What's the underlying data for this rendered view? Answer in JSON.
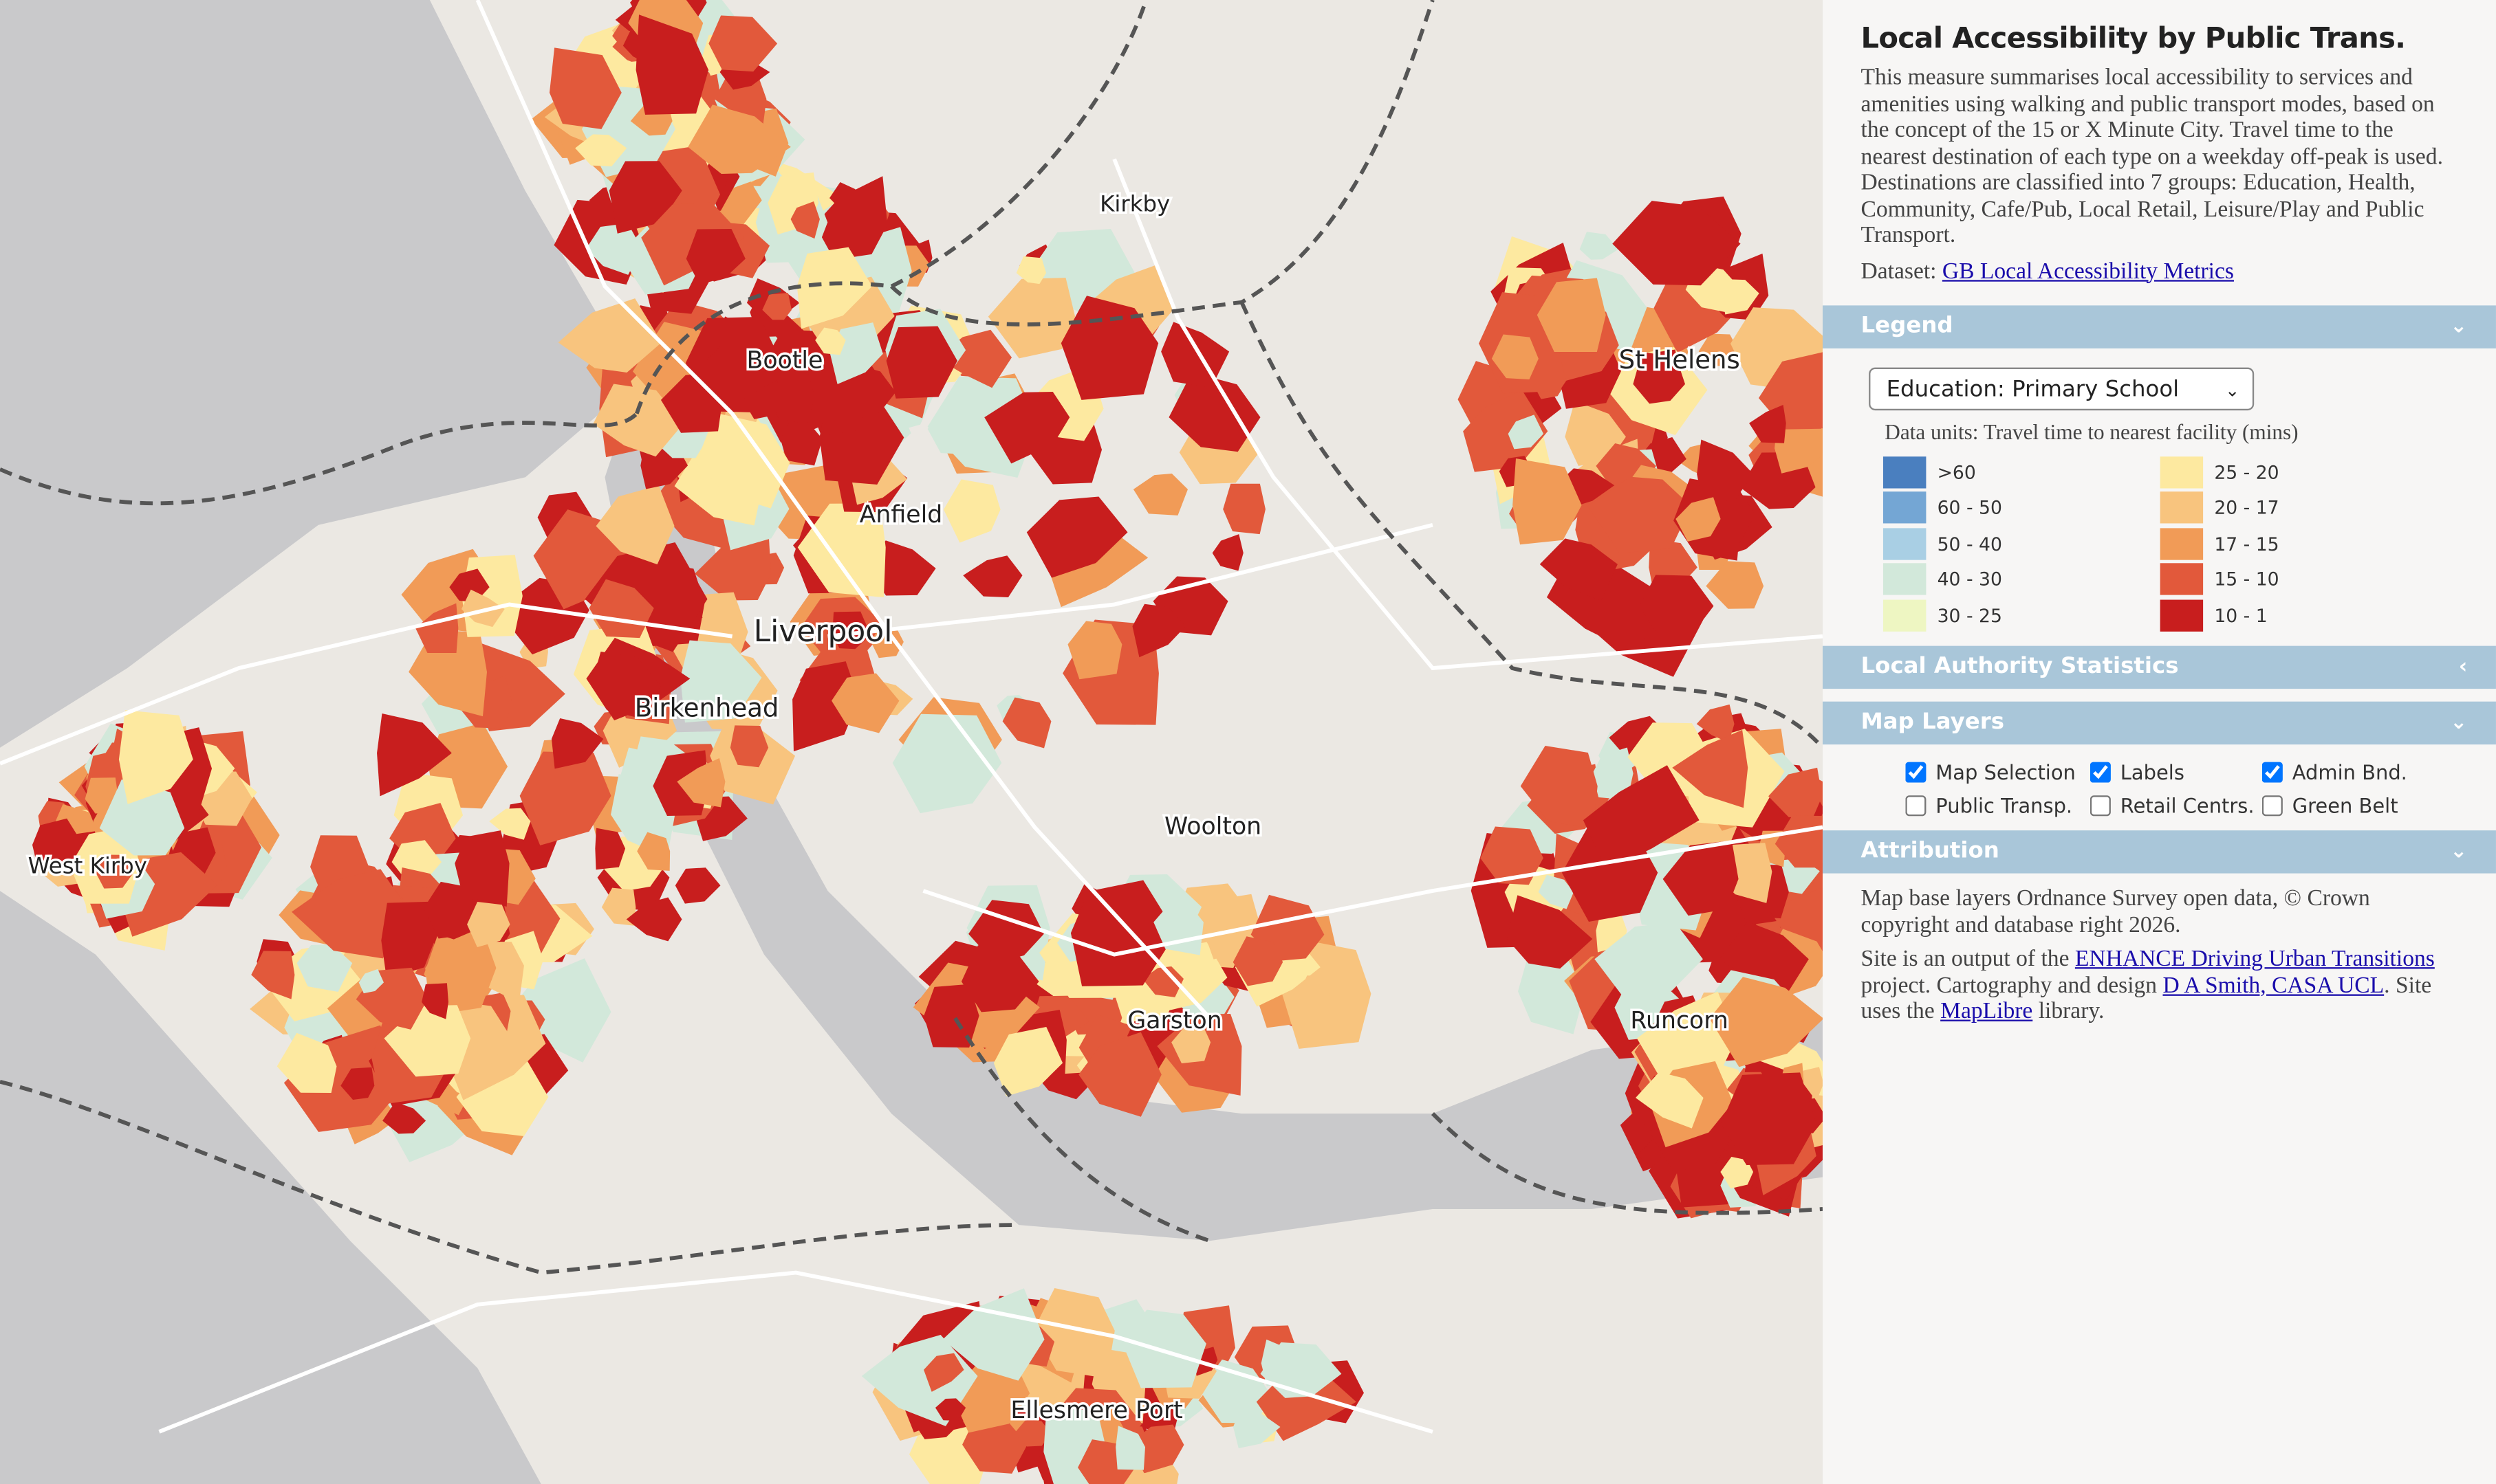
{
  "map": {
    "labels": [
      "Kirkby",
      "Bootle",
      "St Helens",
      "Anfield",
      "Liverpool",
      "Birkenhead",
      "Woolton",
      "West Kirby",
      "Garston",
      "Runcorn",
      "Ellesmere Port"
    ]
  },
  "panel": {
    "title": "Local Accessibility by Public Trans.",
    "description": "This measure summarises local accessibility to services and amenities using walking and public transport modes, based on the concept of the 15 or X Minute City. Travel time to the nearest destination of each type on a weekday off-peak is used. Destinations are classified into 7 groups: Education, Health, Community, Cafe/Pub, Local Retail, Leisure/Play and Public Transport.",
    "dataset_label": "Dataset:",
    "dataset_link": "GB Local Accessibility Metrics"
  },
  "legend": {
    "heading": "Legend",
    "select": "Education: Primary School",
    "units": "Data units: Travel time to nearest facility (mins)",
    "items": [
      {
        "label": ">60",
        "color": "#4a7fbf"
      },
      {
        "label": "60 - 50",
        "color": "#74a6d4"
      },
      {
        "label": "50 - 40",
        "color": "#a9cfe4"
      },
      {
        "label": "40 - 30",
        "color": "#d2e8da"
      },
      {
        "label": "30 - 25",
        "color": "#eef6c2"
      },
      {
        "label": "25 - 20",
        "color": "#fde9a0"
      },
      {
        "label": "20 - 17",
        "color": "#f8c47e"
      },
      {
        "label": "17 - 15",
        "color": "#f19b57"
      },
      {
        "label": "15 - 10",
        "color": "#e2593b"
      },
      {
        "label": "10 - 1",
        "color": "#c81e1e"
      }
    ]
  },
  "stats": {
    "heading": "Local Authority Statistics"
  },
  "layers": {
    "heading": "Map Layers",
    "items": [
      {
        "label": "Map Selection",
        "checked": true
      },
      {
        "label": "Labels",
        "checked": true
      },
      {
        "label": "Admin Bnd.",
        "checked": true
      },
      {
        "label": "Public Transp.",
        "checked": false
      },
      {
        "label": "Retail Centrs.",
        "checked": false
      },
      {
        "label": "Green Belt",
        "checked": false
      }
    ]
  },
  "attribution": {
    "heading": "Attribution",
    "p1": "Map base layers Ordnance Survey open data, © Crown copyright and database right 2026.",
    "p2": [
      {
        "text": "Site is an output of the "
      },
      {
        "text": "ENHANCE Driving Urban Transitions",
        "link": true
      },
      {
        "text": " project. Cartography and design "
      },
      {
        "text": "D A Smith, CASA UCL",
        "link": true
      },
      {
        "text": ". Site uses the "
      },
      {
        "text": "MapLibre",
        "link": true
      },
      {
        "text": " library."
      }
    ]
  }
}
